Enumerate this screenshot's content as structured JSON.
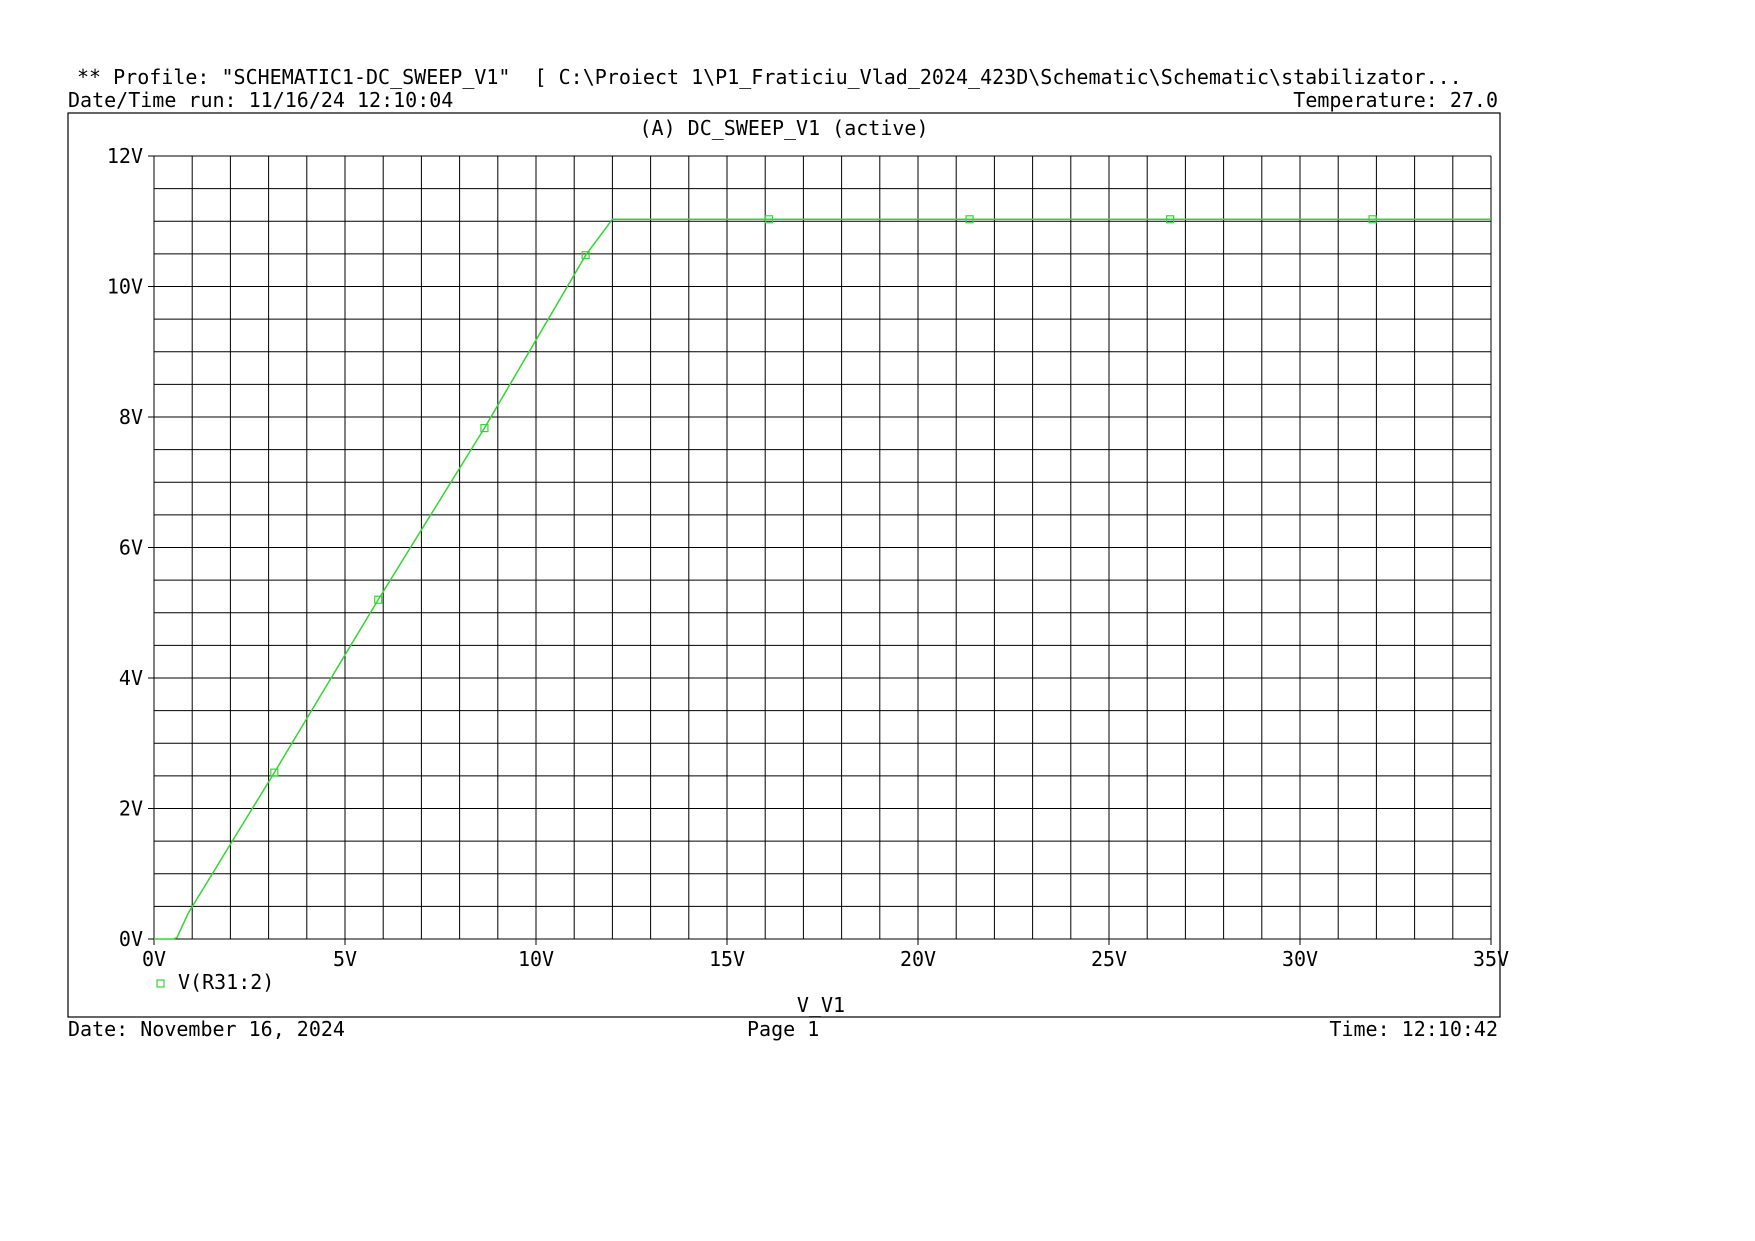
{
  "header": {
    "profile_line": "** Profile: \"SCHEMATIC1-DC_SWEEP_V1\"  [ C:\\Proiect 1\\P1_Fraticiu_Vlad_2024_423D\\Schematic\\Schematic\\stabilizator...",
    "datetime_run": "Date/Time run: 11/16/24 12:10:04",
    "temperature": "Temperature: 27.0"
  },
  "footer": {
    "date": "Date: November 16, 2024",
    "page": "Page 1",
    "time": "Time: 12:10:42"
  },
  "colors": {
    "trace": "#33d633",
    "grid": "#000000"
  },
  "chart_data": {
    "type": "line",
    "title": "(A) DC_SWEEP_V1 (active)",
    "xlabel": "V_V1",
    "ylabel": "",
    "xlim": [
      0,
      35
    ],
    "ylim": [
      0,
      12
    ],
    "grid": true,
    "xticks": [
      0,
      5,
      10,
      15,
      20,
      25,
      30,
      35
    ],
    "xtick_labels": [
      "0V",
      "5V",
      "10V",
      "15V",
      "20V",
      "25V",
      "30V",
      "35V"
    ],
    "yticks": [
      0,
      2,
      4,
      6,
      8,
      10,
      12
    ],
    "ytick_labels": [
      "0V",
      "2V",
      "4V",
      "6V",
      "8V",
      "10V",
      "12V"
    ],
    "legend_position": "bottom-left",
    "series": [
      {
        "name": "V(R31:2)",
        "marker": "square",
        "x": [
          0,
          0.5,
          0.6,
          0.9,
          3.15,
          5.87,
          8.65,
          11.3,
          12.0,
          16.1,
          21.35,
          26.6,
          31.9,
          35
        ],
        "y": [
          0,
          0,
          0.02,
          0.4,
          2.55,
          5.2,
          7.83,
          10.48,
          11.03,
          11.03,
          11.03,
          11.03,
          11.03,
          11.03
        ],
        "marker_x": [
          3.15,
          5.87,
          8.65,
          11.3,
          16.1,
          21.35,
          26.6,
          31.9
        ],
        "marker_y": [
          2.55,
          5.2,
          7.83,
          10.48,
          11.03,
          11.03,
          11.03,
          11.03
        ]
      }
    ]
  }
}
